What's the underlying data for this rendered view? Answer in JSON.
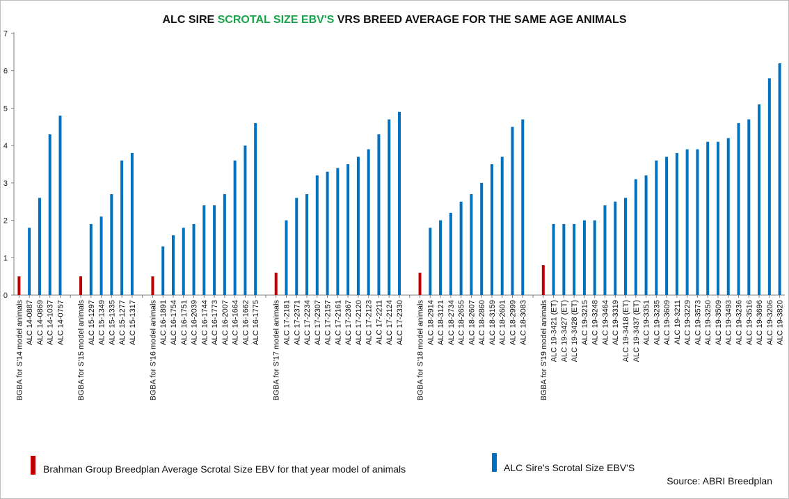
{
  "title": {
    "prefix": "ALC SIRE ",
    "highlight": "SCROTAL SIZE EBV'S",
    "suffix": " VRS BREED AVERAGE FOR THE SAME AGE ANIMALS"
  },
  "colors": {
    "average": "#c00000",
    "sire": "#0070c0",
    "highlight": "#1aa34a"
  },
  "legend": [
    {
      "label": "Brahman Group Breedplan Average Scrotal Size EBV for that year model of animals",
      "color": "#c00000"
    },
    {
      "label": "ALC Sire's Scrotal Size EBV'S",
      "color": "#0070c0"
    }
  ],
  "source": "Source: ABRI Breedplan",
  "chart_data": {
    "type": "bar",
    "ylim": [
      0,
      7
    ],
    "yticks": [
      0,
      1,
      2,
      3,
      4,
      5,
      6,
      7
    ],
    "groups": [
      {
        "bars": [
          {
            "label": "BGBA for S'14 model animals",
            "value": 0.5,
            "kind": "average"
          },
          {
            "label": "ALC 14-0887",
            "value": 1.8,
            "kind": "sire"
          },
          {
            "label": "ALC 14-0869",
            "value": 2.6,
            "kind": "sire"
          },
          {
            "label": "ALC 14-1037",
            "value": 4.3,
            "kind": "sire"
          },
          {
            "label": "ALC 14-0757",
            "value": 4.8,
            "kind": "sire"
          }
        ]
      },
      {
        "bars": [
          {
            "label": "BGBA for S'15 model animals",
            "value": 0.5,
            "kind": "average"
          },
          {
            "label": "ALC 15-1297",
            "value": 1.9,
            "kind": "sire"
          },
          {
            "label": "ALC 15-1349",
            "value": 2.1,
            "kind": "sire"
          },
          {
            "label": "ALC 15-1335",
            "value": 2.7,
            "kind": "sire"
          },
          {
            "label": "ALC 15-1277",
            "value": 3.6,
            "kind": "sire"
          },
          {
            "label": "ALC 15-1317",
            "value": 3.8,
            "kind": "sire"
          }
        ]
      },
      {
        "bars": [
          {
            "label": "BGBA for S'16 model animals",
            "value": 0.5,
            "kind": "average"
          },
          {
            "label": "ALC 16-1891",
            "value": 1.3,
            "kind": "sire"
          },
          {
            "label": "ALC 16-1754",
            "value": 1.6,
            "kind": "sire"
          },
          {
            "label": "ALC 16-1751",
            "value": 1.8,
            "kind": "sire"
          },
          {
            "label": "ALC 16-2039",
            "value": 1.9,
            "kind": "sire"
          },
          {
            "label": "ALC 16-1744",
            "value": 2.4,
            "kind": "sire"
          },
          {
            "label": "ALC 16-1773",
            "value": 2.4,
            "kind": "sire"
          },
          {
            "label": "ALC 16-2007",
            "value": 2.7,
            "kind": "sire"
          },
          {
            "label": "ALC 16-1664",
            "value": 3.6,
            "kind": "sire"
          },
          {
            "label": "ALC 16-1662",
            "value": 4.0,
            "kind": "sire"
          },
          {
            "label": "ALC 16-1775",
            "value": 4.6,
            "kind": "sire"
          }
        ]
      },
      {
        "bars": [
          {
            "label": "BGBA for S'17 model animals",
            "value": 0.6,
            "kind": "average"
          },
          {
            "label": "ALC 17-2181",
            "value": 2.0,
            "kind": "sire"
          },
          {
            "label": "ALC 17-2371",
            "value": 2.6,
            "kind": "sire"
          },
          {
            "label": "ALC 17-2234",
            "value": 2.7,
            "kind": "sire"
          },
          {
            "label": "ALC 17-2307",
            "value": 3.2,
            "kind": "sire"
          },
          {
            "label": "ALC 17-2157",
            "value": 3.3,
            "kind": "sire"
          },
          {
            "label": "ALC 17-2161",
            "value": 3.4,
            "kind": "sire"
          },
          {
            "label": "ALC 17-2367",
            "value": 3.5,
            "kind": "sire"
          },
          {
            "label": "ALC 17-2120",
            "value": 3.7,
            "kind": "sire"
          },
          {
            "label": "ALC 17-2123",
            "value": 3.9,
            "kind": "sire"
          },
          {
            "label": "ALC 17-2211",
            "value": 4.3,
            "kind": "sire"
          },
          {
            "label": "ALC 17-2124",
            "value": 4.7,
            "kind": "sire"
          },
          {
            "label": "ALC 17-2330",
            "value": 4.9,
            "kind": "sire"
          }
        ]
      },
      {
        "bars": [
          {
            "label": "BGBA for S'18 model animals",
            "value": 0.6,
            "kind": "average"
          },
          {
            "label": "ALC 18-2914",
            "value": 1.8,
            "kind": "sire"
          },
          {
            "label": "ALC 18-3121",
            "value": 2.0,
            "kind": "sire"
          },
          {
            "label": "ALC 18-2734",
            "value": 2.2,
            "kind": "sire"
          },
          {
            "label": "ALC 18-2655",
            "value": 2.5,
            "kind": "sire"
          },
          {
            "label": "ALC 18-2607",
            "value": 2.7,
            "kind": "sire"
          },
          {
            "label": "ALC 18-2860",
            "value": 3.0,
            "kind": "sire"
          },
          {
            "label": "ALC 18-3159",
            "value": 3.5,
            "kind": "sire"
          },
          {
            "label": "ALC 18-2601",
            "value": 3.7,
            "kind": "sire"
          },
          {
            "label": "ALC 18-2999",
            "value": 4.5,
            "kind": "sire"
          },
          {
            "label": "ALC 18-3083",
            "value": 4.7,
            "kind": "sire"
          }
        ]
      },
      {
        "bars": [
          {
            "label": "BGBA for S'19 model animals",
            "value": 0.8,
            "kind": "average"
          },
          {
            "label": "ALC 19-3421 (ET)",
            "value": 1.9,
            "kind": "sire"
          },
          {
            "label": "ALC 19-3427 (ET)",
            "value": 1.9,
            "kind": "sire"
          },
          {
            "label": "ALC 19-3428 (ET)",
            "value": 1.9,
            "kind": "sire"
          },
          {
            "label": "ALC 19-3215",
            "value": 2.0,
            "kind": "sire"
          },
          {
            "label": "ALC 19-3248",
            "value": 2.0,
            "kind": "sire"
          },
          {
            "label": "ALC 19-3464",
            "value": 2.4,
            "kind": "sire"
          },
          {
            "label": "ALC 19-3319",
            "value": 2.5,
            "kind": "sire"
          },
          {
            "label": "ALC 19-3418 (ET)",
            "value": 2.6,
            "kind": "sire"
          },
          {
            "label": "ALC 19-3437 (ET)",
            "value": 3.1,
            "kind": "sire"
          },
          {
            "label": "ALC 19-3351",
            "value": 3.2,
            "kind": "sire"
          },
          {
            "label": "ALC 19-3235",
            "value": 3.6,
            "kind": "sire"
          },
          {
            "label": "ALC 19-3609",
            "value": 3.7,
            "kind": "sire"
          },
          {
            "label": "ALC 19-3211",
            "value": 3.8,
            "kind": "sire"
          },
          {
            "label": "ALC 19-3229",
            "value": 3.9,
            "kind": "sire"
          },
          {
            "label": "ALC 19-3573",
            "value": 3.9,
            "kind": "sire"
          },
          {
            "label": "ALC 19-3250",
            "value": 4.1,
            "kind": "sire"
          },
          {
            "label": "ALC 19-3509",
            "value": 4.1,
            "kind": "sire"
          },
          {
            "label": "ALC 19-3493",
            "value": 4.2,
            "kind": "sire"
          },
          {
            "label": "ALC 19-3236",
            "value": 4.6,
            "kind": "sire"
          },
          {
            "label": "ALC 19-3516",
            "value": 4.7,
            "kind": "sire"
          },
          {
            "label": "ALC 19-3696",
            "value": 5.1,
            "kind": "sire"
          },
          {
            "label": "ALC 19-3206",
            "value": 5.8,
            "kind": "sire"
          },
          {
            "label": "ALC 19-3820",
            "value": 6.2,
            "kind": "sire"
          }
        ]
      }
    ]
  }
}
